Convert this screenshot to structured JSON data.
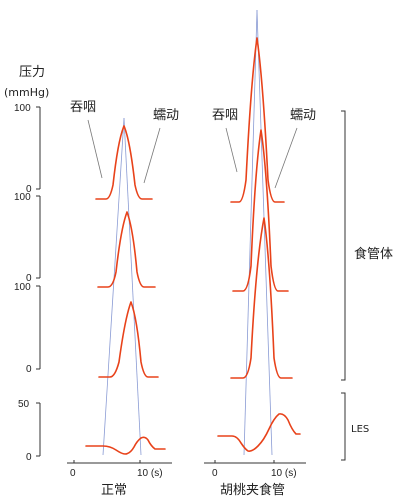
{
  "y_axis": {
    "title": "压力",
    "unit": "(mmHg)",
    "body_ticks": [
      "100",
      "0"
    ],
    "les_ticks": [
      "50",
      "0"
    ]
  },
  "x_axis": {
    "ticks": [
      "0",
      "10 (s)"
    ]
  },
  "annotations": {
    "swallow": "吞咽",
    "peristalsis": "蠕动"
  },
  "segments": {
    "body": "食管体",
    "les": "LES"
  },
  "panels": [
    {
      "label": "正常"
    },
    {
      "label": "胡桃夹食管"
    }
  ],
  "colors": {
    "trace": "#e8421a",
    "guide": "#8a9bd4",
    "axis": "#333333"
  },
  "chart_data": {
    "type": "line",
    "x_unit": "s",
    "xlim": [
      0,
      10
    ],
    "body_ylim": [
      0,
      100
    ],
    "les_ylim": [
      0,
      50
    ],
    "normal": {
      "body_peak_times": [
        6.4,
        6.7,
        7.1
      ],
      "body_peak_values": [
        80,
        76,
        78
      ],
      "les_baseline": 7,
      "les_min": 0,
      "les_min_time": 5.3,
      "les_rebound_peak": 18,
      "les_rebound_time": 8.8
    },
    "nutcracker": {
      "body_peak_times": [
        5.4,
        5.8,
        6.1
      ],
      "body_peak_values": [
        180,
        78,
        76
      ],
      "les_baseline": 18,
      "les_min": 0,
      "les_min_time": 3.2,
      "les_rebound_peak": 38,
      "les_rebound_time": 8.6
    }
  }
}
